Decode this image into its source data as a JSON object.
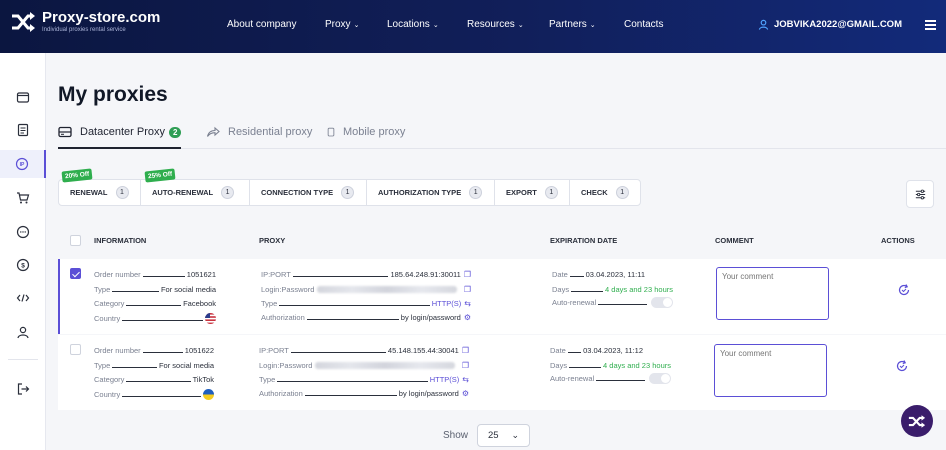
{
  "header": {
    "logo_title": "Proxy-store.com",
    "logo_subtitle": "Individual proxies rental service",
    "nav": [
      {
        "label": "About company",
        "chev": false
      },
      {
        "label": "Proxy",
        "chev": true
      },
      {
        "label": "Locations",
        "chev": true
      },
      {
        "label": "Resources",
        "chev": true
      },
      {
        "label": "Partners",
        "chev": true
      },
      {
        "label": "Contacts",
        "chev": false
      }
    ],
    "user_email": "JOBVIKA2022@GMAIL.COM"
  },
  "page_title": "My proxies",
  "tabs": [
    {
      "label": "Datacenter Proxy",
      "badge": "2",
      "active": true
    },
    {
      "label": "Residential proxy"
    },
    {
      "label": "Mobile proxy"
    }
  ],
  "filters": [
    {
      "label": "RENEWAL",
      "count": "1",
      "promo": "20% Off"
    },
    {
      "label": "AUTO-RENEWAL",
      "count": "1",
      "promo": "25% Off"
    },
    {
      "label": "CONNECTION TYPE",
      "count": "1"
    },
    {
      "label": "AUTHORIZATION TYPE",
      "count": "1"
    },
    {
      "label": "EXPORT",
      "count": "1"
    },
    {
      "label": "CHECK",
      "count": "1"
    }
  ],
  "table": {
    "headers": {
      "information": "INFORMATION",
      "proxy": "PROXY",
      "expiration": "EXPIRATION DATE",
      "comment": "COMMENT",
      "actions": "ACTIONS"
    },
    "rows": [
      {
        "selected": true,
        "info": {
          "order_label": "Order number",
          "order": "1051621",
          "type_label": "Type",
          "type": "For social media",
          "category_label": "Category",
          "category": "Facebook",
          "country_label": "Country",
          "country_flag": "us-flag"
        },
        "proxy": {
          "ipport_label": "IP:PORT",
          "ipport": "185.64.248.91:30011",
          "login_label": "Login:Password",
          "type_label": "Type",
          "type": "HTTP(S)",
          "auth_label": "Authorization",
          "auth": "by login/password"
        },
        "expiration": {
          "date_label": "Date",
          "date": "03.04.2023, 11:11",
          "days_label": "Days",
          "days": "4 days and 23 hours",
          "autorenew_label": "Auto-renewal"
        },
        "comment_placeholder": "Your comment"
      },
      {
        "selected": false,
        "info": {
          "order_label": "Order number",
          "order": "1051622",
          "type_label": "Type",
          "type": "For social media",
          "category_label": "Category",
          "category": "TikTok",
          "country_label": "Country",
          "country_flag": "ua-flag"
        },
        "proxy": {
          "ipport_label": "IP:PORT",
          "ipport": "45.148.155.44:30041",
          "login_label": "Login:Password",
          "type_label": "Type",
          "type": "HTTP(S)",
          "auth_label": "Authorization",
          "auth": "by login/password"
        },
        "expiration": {
          "date_label": "Date",
          "date": "03.04.2023, 11:12",
          "days_label": "Days",
          "days": "4 days and 23 hours",
          "autorenew_label": "Auto-renewal"
        },
        "comment_placeholder": "Your comment"
      }
    ]
  },
  "pagination": {
    "show_label": "Show",
    "page_size": "25"
  },
  "colors": {
    "accent": "#5b4fd6",
    "green": "#2fae4e",
    "header_bg": "#0b1640"
  }
}
